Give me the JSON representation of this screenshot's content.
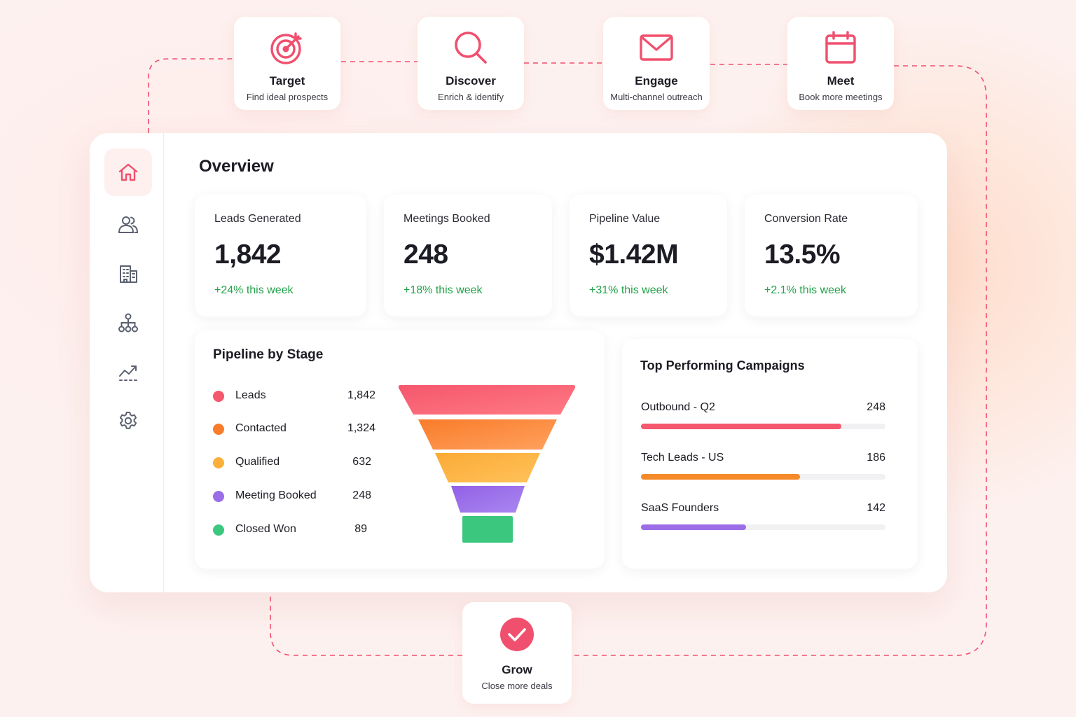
{
  "colors": {
    "accent": "#f0506e",
    "positive": "#22a34a",
    "icon_muted": "#5b6070"
  },
  "steps": [
    {
      "icon": "target-icon",
      "title": "Target",
      "subtitle": "Find ideal prospects"
    },
    {
      "icon": "search-icon",
      "title": "Discover",
      "subtitle": "Enrich & identify"
    },
    {
      "icon": "mail-icon",
      "title": "Engage",
      "subtitle": "Multi-channel outreach"
    },
    {
      "icon": "calendar-icon",
      "title": "Meet",
      "subtitle": "Book more meetings"
    }
  ],
  "sidebar": {
    "items": [
      {
        "icon": "home-icon",
        "active": true
      },
      {
        "icon": "users-icon",
        "active": false
      },
      {
        "icon": "building-icon",
        "active": false
      },
      {
        "icon": "hierarchy-icon",
        "active": false
      },
      {
        "icon": "trend-icon",
        "active": false
      },
      {
        "icon": "gear-icon",
        "active": false
      }
    ]
  },
  "overview": {
    "title": "Overview",
    "kpis": [
      {
        "label": "Leads Generated",
        "value": "1,842",
        "delta": "+24% this week"
      },
      {
        "label": "Meetings Booked",
        "value": "248",
        "delta": "+18% this week"
      },
      {
        "label": "Pipeline Value",
        "value": "$1.42M",
        "delta": "+31% this week"
      },
      {
        "label": "Conversion Rate",
        "value": "13.5%",
        "delta": "+2.1% this week"
      }
    ]
  },
  "pipeline": {
    "title": "Pipeline by Stage",
    "stages": [
      {
        "name": "Leads",
        "value": "1,842",
        "color": "#f5576c"
      },
      {
        "name": "Contacted",
        "value": "1,324",
        "color": "#f97c2a"
      },
      {
        "name": "Qualified",
        "value": "632",
        "color": "#fbb03b"
      },
      {
        "name": "Meeting Booked",
        "value": "248",
        "color": "#9b6ee8"
      },
      {
        "name": "Closed Won",
        "value": "89",
        "color": "#3cc77f"
      }
    ]
  },
  "campaigns": {
    "title": "Top Performing Campaigns",
    "items": [
      {
        "name": "Outbound - Q2",
        "value": "248",
        "progress": 0.82,
        "color": "#f5576c"
      },
      {
        "name": "Tech Leads - US",
        "value": "186",
        "progress": 0.65,
        "color": "#f58a2a"
      },
      {
        "name": "SaaS Founders",
        "value": "142",
        "progress": 0.43,
        "color": "#9b6ee8"
      }
    ]
  },
  "grow": {
    "icon": "check-circle-icon",
    "title": "Grow",
    "subtitle": "Close more deals"
  }
}
